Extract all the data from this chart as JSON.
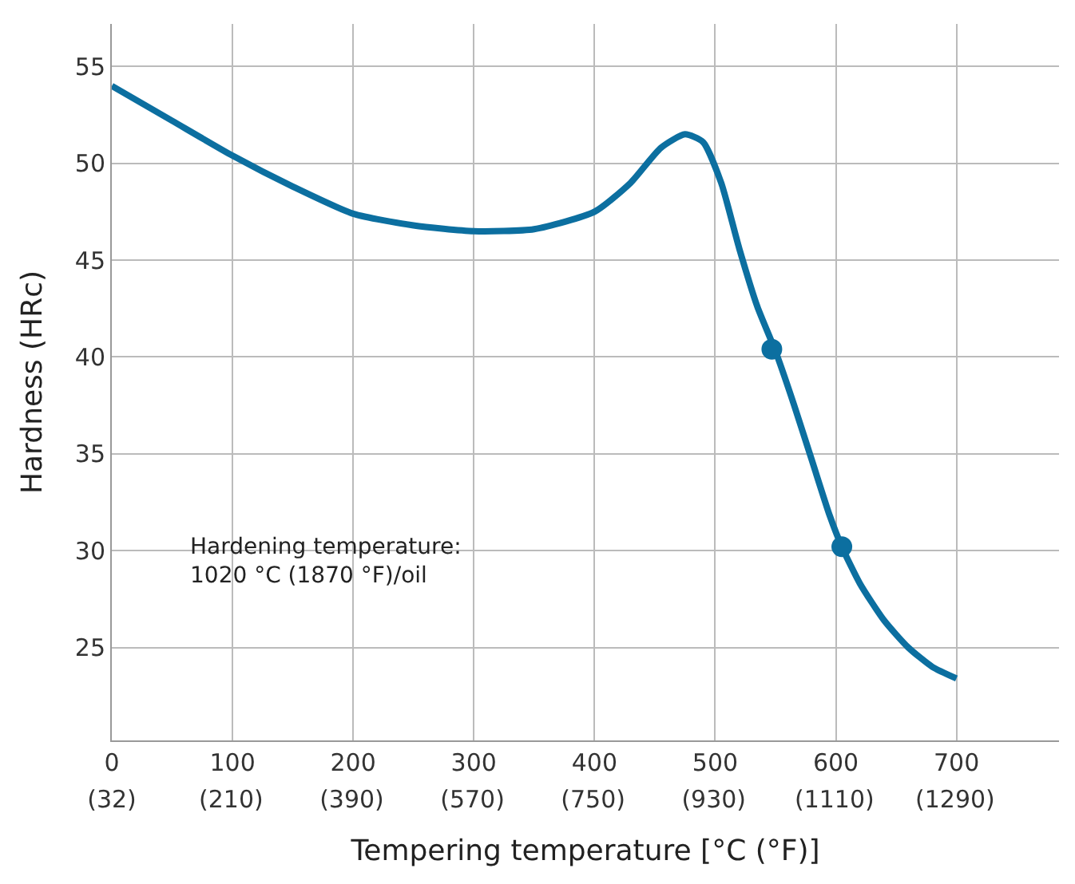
{
  "chart_data": {
    "type": "line",
    "xlabel": "Tempering temperature [°C (°F)]",
    "ylabel": "Hardness (HRc)",
    "annotations": [
      "Hardening temperature:\n1020 °C (1870 °F)/oil"
    ],
    "series": [
      {
        "color": "#0c6fa0",
        "marker": "none",
        "x": [
          0,
          50,
          100,
          150,
          200,
          250,
          300,
          350,
          400,
          430,
          455,
          475,
          490,
          505,
          520,
          535,
          550,
          565,
          580,
          595,
          605,
          620,
          640,
          660,
          680,
          700
        ],
        "values": [
          54,
          52.2,
          50.4,
          48.8,
          47.4,
          46.8,
          46.5,
          46.6,
          47.5,
          49,
          50.8,
          51.5,
          51.1,
          49,
          45.6,
          42.6,
          40.3,
          37.6,
          34.7,
          31.8,
          30.2,
          28.3,
          26.4,
          25,
          24,
          23.4
        ]
      },
      {
        "type": "scatter",
        "color": "#0c6fa0",
        "marker": "circle",
        "x": [
          547,
          605
        ],
        "values": [
          40.4,
          30.2
        ]
      }
    ],
    "xlim": [
      0,
      785
    ],
    "ylim": [
      20.2,
      57.2
    ],
    "xticks": [
      0,
      100,
      200,
      300,
      400,
      500,
      600,
      700
    ],
    "x2lim": [
      32,
      1445
    ],
    "x2ticks": [
      {
        "value": 32,
        "label": "(32)"
      },
      {
        "value": 210,
        "label": "(210)"
      },
      {
        "value": 390,
        "label": "(390)"
      },
      {
        "value": 570,
        "label": "(570)"
      },
      {
        "value": 750,
        "label": "(750)"
      },
      {
        "value": 930,
        "label": "(930)"
      },
      {
        "value": 1110,
        "label": "(1110)"
      },
      {
        "value": 1290,
        "label": "(1290)"
      }
    ],
    "yticks": [
      25,
      30,
      35,
      40,
      45,
      50,
      55
    ],
    "grid": true
  }
}
